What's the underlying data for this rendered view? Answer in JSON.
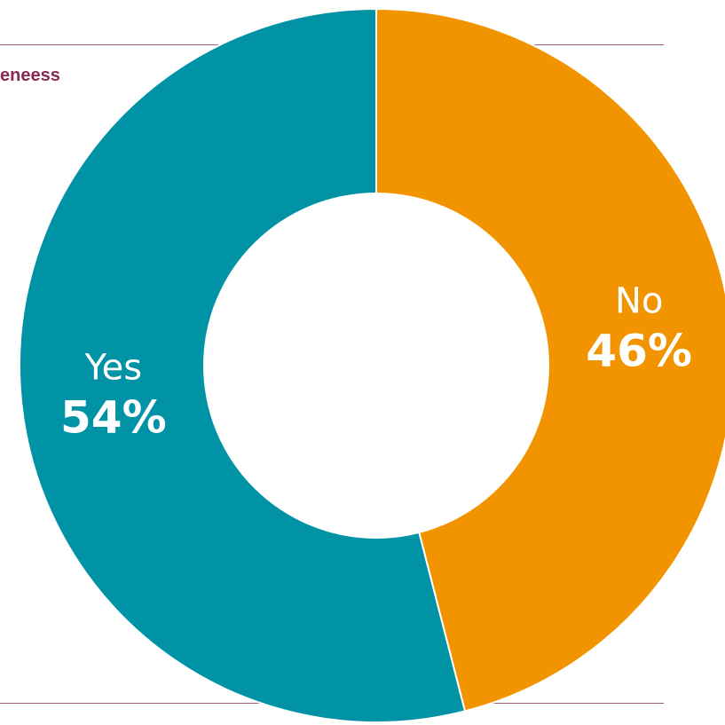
{
  "header": {
    "title_fragment": "eneess"
  },
  "chart_data": {
    "type": "pie",
    "donut": true,
    "slices": [
      {
        "label": "No",
        "value": 46,
        "value_label": "46%",
        "color": "#f29400"
      },
      {
        "label": "Yes",
        "value": 54,
        "value_label": "54%",
        "color": "#0093a6"
      }
    ],
    "colors": {
      "rule": "#9c5a78",
      "title": "#8a2a52",
      "hole": "#ffffff"
    }
  }
}
